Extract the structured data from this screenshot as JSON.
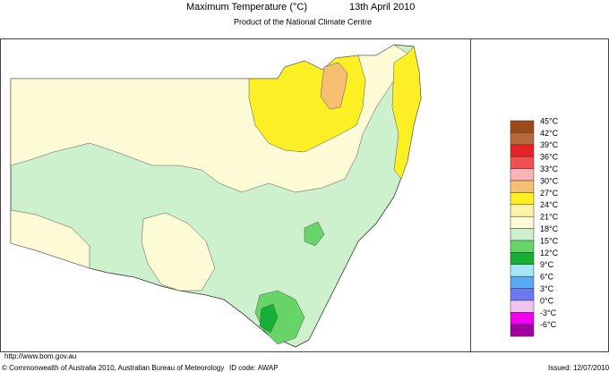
{
  "header": {
    "title": "Maximum Temperature (°C)",
    "date": "13th April 2010",
    "subtitle": "Product of the National Climate Centre"
  },
  "legend": [
    {
      "label": "45°C",
      "color": "#9c4a1c"
    },
    {
      "label": "42°C",
      "color": "#b8683a"
    },
    {
      "label": "39°C",
      "color": "#e42424"
    },
    {
      "label": "36°C",
      "color": "#f25050"
    },
    {
      "label": "33°C",
      "color": "#f8b4b4"
    },
    {
      "label": "30°C",
      "color": "#f6bf72"
    },
    {
      "label": "27°C",
      "color": "#fcf024"
    },
    {
      "label": "24°C",
      "color": "#fcf3a6"
    },
    {
      "label": "21°C",
      "color": "#fdfbd6"
    },
    {
      "label": "18°C",
      "color": "#cdf0cd"
    },
    {
      "label": "15°C",
      "color": "#66d466"
    },
    {
      "label": "12°C",
      "color": "#16b034"
    },
    {
      "label": "9°C",
      "color": "#a4e8f8"
    },
    {
      "label": "6°C",
      "color": "#5aa8f6"
    },
    {
      "label": "3°C",
      "color": "#6c78f0"
    },
    {
      "label": "0°C",
      "color": "#f0c4f0"
    },
    {
      "label": "-3°C",
      "color": "#f000f0"
    },
    {
      "label": "-6°C",
      "color": "#a000a0"
    }
  ],
  "footer": {
    "url": "http://www.bom.gov.au",
    "copyright": "© Commonwealth of Australia 2010, Australian Bureau of Meteorology",
    "id_code": "ID code: AWAP",
    "issued": "Issued: 12/07/2010"
  }
}
